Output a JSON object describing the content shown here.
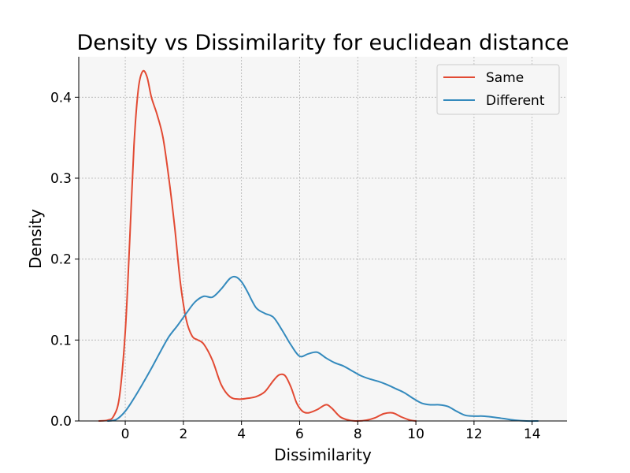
{
  "chart_data": {
    "type": "line",
    "title": "Density vs Dissimilarity for euclidean distance",
    "xlabel": "Dissimilarity",
    "ylabel": "Density",
    "xlim": [
      -1.6,
      15.2
    ],
    "ylim": [
      0,
      0.45
    ],
    "xticks": [
      0,
      2,
      4,
      6,
      8,
      10,
      12,
      14
    ],
    "yticks": [
      0.0,
      0.1,
      0.2,
      0.3,
      0.4
    ],
    "xtick_labels": [
      "0",
      "2",
      "4",
      "6",
      "8",
      "10",
      "12",
      "14"
    ],
    "ytick_labels": [
      "0.0",
      "0.1",
      "0.2",
      "0.3",
      "0.4"
    ],
    "grid": true,
    "legend_position": "top-right",
    "colors": {
      "background": "#f6f6f6",
      "grid": "#b0b0b0",
      "same": "#e24a33",
      "different": "#348abd"
    },
    "series": [
      {
        "name": "Same",
        "color": "#e24a33",
        "x": [
          -0.9,
          -0.6,
          -0.4,
          -0.2,
          0.0,
          0.15,
          0.3,
          0.45,
          0.6,
          0.75,
          0.9,
          1.1,
          1.3,
          1.5,
          1.7,
          1.9,
          2.1,
          2.3,
          2.5,
          2.7,
          3.0,
          3.3,
          3.6,
          3.9,
          4.2,
          4.5,
          4.8,
          5.1,
          5.3,
          5.5,
          5.7,
          5.9,
          6.1,
          6.3,
          6.6,
          6.9,
          7.1,
          7.4,
          7.7,
          8.0,
          8.3,
          8.6,
          8.9,
          9.2,
          9.5,
          9.8,
          10.0
        ],
        "y": [
          0.0,
          0.001,
          0.006,
          0.03,
          0.11,
          0.22,
          0.34,
          0.41,
          0.432,
          0.425,
          0.4,
          0.378,
          0.35,
          0.3,
          0.24,
          0.17,
          0.125,
          0.105,
          0.1,
          0.095,
          0.075,
          0.045,
          0.03,
          0.027,
          0.028,
          0.03,
          0.036,
          0.05,
          0.057,
          0.056,
          0.042,
          0.022,
          0.012,
          0.01,
          0.014,
          0.02,
          0.016,
          0.005,
          0.001,
          0.0,
          0.001,
          0.004,
          0.009,
          0.01,
          0.005,
          0.001,
          0.0
        ]
      },
      {
        "name": "Different",
        "color": "#348abd",
        "x": [
          -0.6,
          -0.3,
          0.0,
          0.3,
          0.6,
          0.9,
          1.2,
          1.5,
          1.8,
          2.1,
          2.4,
          2.7,
          3.0,
          3.3,
          3.6,
          3.8,
          4.0,
          4.2,
          4.5,
          4.8,
          5.1,
          5.4,
          5.7,
          6.0,
          6.3,
          6.6,
          6.9,
          7.2,
          7.5,
          7.8,
          8.1,
          8.4,
          8.7,
          9.0,
          9.3,
          9.6,
          9.9,
          10.2,
          10.5,
          10.8,
          11.1,
          11.4,
          11.7,
          12.0,
          12.3,
          12.6,
          13.0,
          13.4,
          13.8,
          14.2
        ],
        "y": [
          0.0,
          0.002,
          0.012,
          0.028,
          0.046,
          0.065,
          0.085,
          0.104,
          0.118,
          0.133,
          0.147,
          0.154,
          0.153,
          0.163,
          0.176,
          0.178,
          0.172,
          0.16,
          0.14,
          0.133,
          0.128,
          0.112,
          0.094,
          0.08,
          0.083,
          0.085,
          0.078,
          0.072,
          0.068,
          0.062,
          0.056,
          0.052,
          0.049,
          0.045,
          0.04,
          0.035,
          0.028,
          0.022,
          0.02,
          0.02,
          0.018,
          0.012,
          0.007,
          0.006,
          0.006,
          0.005,
          0.003,
          0.001,
          0.0,
          0.0
        ]
      }
    ]
  }
}
